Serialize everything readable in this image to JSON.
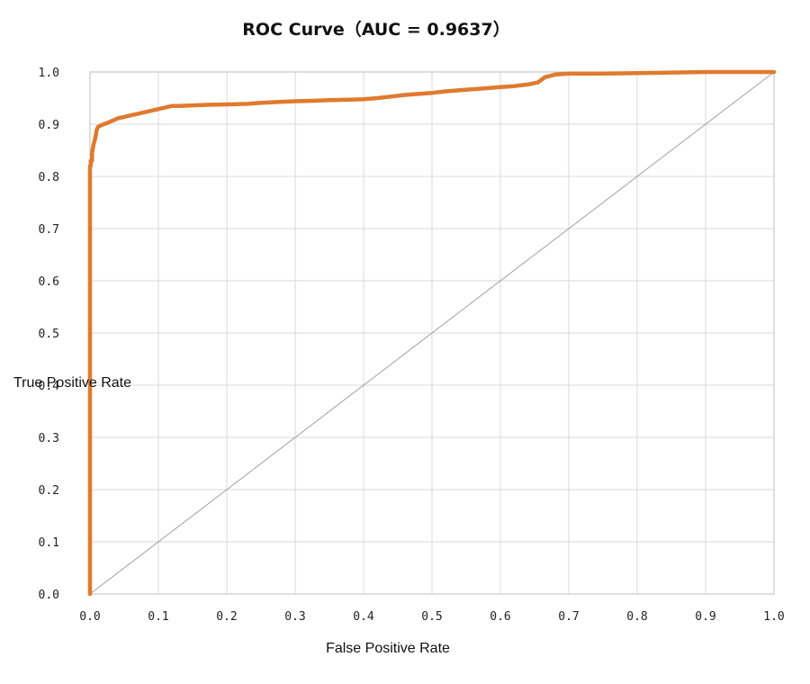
{
  "chart_data": {
    "type": "line",
    "title": "ROC Curve（AUC = 0.9637）",
    "xlabel": "False Positive Rate",
    "ylabel": "True Positive Rate",
    "xlim": [
      0,
      1
    ],
    "ylim": [
      0,
      1
    ],
    "x_ticks": [
      "0.0",
      "0.1",
      "0.2",
      "0.3",
      "0.4",
      "0.5",
      "0.6",
      "0.7",
      "0.8",
      "0.9",
      "1.0"
    ],
    "y_ticks": [
      "0.0",
      "0.1",
      "0.2",
      "0.3",
      "0.4",
      "0.5",
      "0.6",
      "0.7",
      "0.8",
      "0.9",
      "1.0"
    ],
    "grid": true,
    "legend": "none",
    "colors": {
      "roc": "#e07a2e",
      "diagonal": "#a0a0a0",
      "grid": "#d9d9d9",
      "frame": "#bfbfbf"
    },
    "series": [
      {
        "x": [
          0,
          0,
          0.001,
          0.001,
          0.003,
          0.003,
          0.005,
          0.006,
          0.008,
          0.01,
          0.012,
          0.015,
          0.02,
          0.025,
          0.03,
          0.035,
          0.04,
          0.05,
          0.06,
          0.07,
          0.08,
          0.09,
          0.1,
          0.11,
          0.12,
          0.13,
          0.15,
          0.17,
          0.2,
          0.23,
          0.25,
          0.28,
          0.3,
          0.33,
          0.35,
          0.38,
          0.4,
          0.42,
          0.44,
          0.46,
          0.48,
          0.5,
          0.52,
          0.54,
          0.56,
          0.58,
          0.6,
          0.62,
          0.64,
          0.655,
          0.665,
          0.68,
          0.7,
          0.75,
          0.8,
          0.85,
          0.9,
          0.95,
          1.0
        ],
        "y": [
          0,
          0.82,
          0.82,
          0.83,
          0.83,
          0.845,
          0.86,
          0.865,
          0.875,
          0.89,
          0.895,
          0.897,
          0.9,
          0.902,
          0.905,
          0.908,
          0.911,
          0.914,
          0.917,
          0.92,
          0.923,
          0.926,
          0.929,
          0.932,
          0.935,
          0.935,
          0.936,
          0.937,
          0.938,
          0.939,
          0.941,
          0.943,
          0.944,
          0.945,
          0.946,
          0.947,
          0.948,
          0.95,
          0.953,
          0.956,
          0.958,
          0.96,
          0.963,
          0.965,
          0.967,
          0.969,
          0.971,
          0.973,
          0.976,
          0.98,
          0.99,
          0.995,
          0.997,
          0.997,
          0.998,
          0.999,
          1.0,
          1.0,
          1.0
        ]
      },
      {
        "x": [
          0,
          1
        ],
        "y": [
          0,
          1
        ]
      }
    ]
  }
}
